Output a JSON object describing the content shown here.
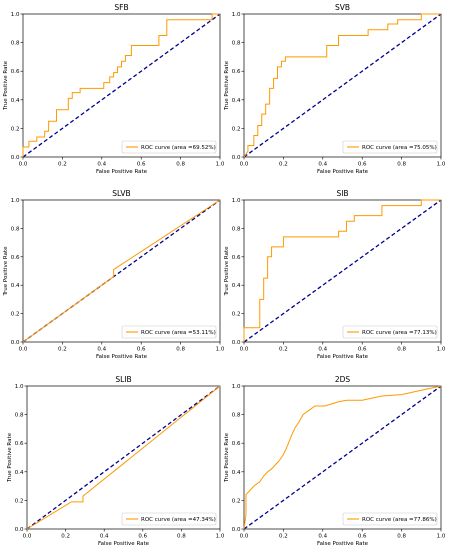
{
  "chart_data": [
    {
      "type": "line",
      "title": "SFB",
      "xlabel": "False Positive Rate",
      "ylabel": "True Positive Rate",
      "xlim": [
        0,
        1
      ],
      "ylim": [
        0,
        1
      ],
      "xticks": [
        "0.0",
        "0.2",
        "0.4",
        "0.6",
        "0.8",
        "1.0"
      ],
      "yticks": [
        "0.0",
        "0.2",
        "0.4",
        "0.6",
        "0.8",
        "1.0"
      ],
      "legend": "ROC curve (area =69.52%)",
      "legend_position": "lower-right",
      "series": [
        {
          "color": "#ff9900",
          "x": [
            0,
            0,
            0.03,
            0.03,
            0.07,
            0.07,
            0.11,
            0.11,
            0.13,
            0.13,
            0.17,
            0.17,
            0.23,
            0.23,
            0.25,
            0.25,
            0.29,
            0.29,
            0.41,
            0.41,
            0.44,
            0.44,
            0.46,
            0.46,
            0.48,
            0.48,
            0.5,
            0.5,
            0.52,
            0.52,
            0.55,
            0.55,
            0.69,
            0.69,
            0.73,
            0.73,
            0.96,
            0.96,
            1.0
          ],
          "y": [
            0,
            0.07,
            0.07,
            0.11,
            0.11,
            0.14,
            0.14,
            0.18,
            0.18,
            0.25,
            0.25,
            0.33,
            0.33,
            0.41,
            0.41,
            0.45,
            0.45,
            0.48,
            0.48,
            0.52,
            0.52,
            0.56,
            0.56,
            0.59,
            0.59,
            0.63,
            0.63,
            0.67,
            0.67,
            0.71,
            0.71,
            0.78,
            0.78,
            0.85,
            0.85,
            0.96,
            0.96,
            1.0,
            1.0
          ]
        },
        {
          "color": "#00008b",
          "dashed": true,
          "x": [
            0,
            1
          ],
          "y": [
            0,
            1
          ]
        }
      ]
    },
    {
      "type": "line",
      "title": "SVB",
      "xlabel": "False Positive Rate",
      "ylabel": "True Positive Rate",
      "xlim": [
        0,
        1
      ],
      "ylim": [
        0,
        1
      ],
      "xticks": [
        "0.0",
        "0.2",
        "0.4",
        "0.6",
        "0.8",
        "1.0"
      ],
      "yticks": [
        "0.0",
        "0.2",
        "0.4",
        "0.6",
        "0.8",
        "1.0"
      ],
      "legend": "ROC curve (area =75.05%)",
      "legend_position": "lower-right",
      "series": [
        {
          "color": "#ff9900",
          "x": [
            0,
            0.02,
            0.02,
            0.05,
            0.05,
            0.07,
            0.07,
            0.09,
            0.09,
            0.11,
            0.11,
            0.13,
            0.13,
            0.15,
            0.15,
            0.17,
            0.17,
            0.19,
            0.19,
            0.21,
            0.21,
            0.42,
            0.42,
            0.48,
            0.48,
            0.63,
            0.63,
            0.73,
            0.73,
            0.78,
            0.78,
            0.9,
            0.9,
            1.0
          ],
          "y": [
            0,
            0.04,
            0.08,
            0.08,
            0.15,
            0.15,
            0.22,
            0.22,
            0.3,
            0.3,
            0.37,
            0.37,
            0.48,
            0.48,
            0.55,
            0.55,
            0.63,
            0.63,
            0.67,
            0.67,
            0.7,
            0.7,
            0.78,
            0.78,
            0.85,
            0.85,
            0.89,
            0.89,
            0.93,
            0.93,
            0.96,
            0.96,
            1.0,
            1.0
          ]
        },
        {
          "color": "#00008b",
          "dashed": true,
          "x": [
            0,
            1
          ],
          "y": [
            0,
            1
          ]
        }
      ]
    },
    {
      "type": "line",
      "title": "SLVB",
      "xlabel": "False Positive Rate",
      "ylabel": "True Positive Rate",
      "xlim": [
        0,
        1
      ],
      "ylim": [
        0,
        1
      ],
      "xticks": [
        "0.0",
        "0.2",
        "0.4",
        "0.6",
        "0.8",
        "1.0"
      ],
      "yticks": [
        "0.0",
        "0.2",
        "0.4",
        "0.6",
        "0.8",
        "1.0"
      ],
      "legend": "ROC curve (area =53.11%)",
      "legend_position": "lower-right",
      "series": [
        {
          "color": "#ff9900",
          "x": [
            0,
            0.46,
            0.46,
            1.0
          ],
          "y": [
            0,
            0.46,
            0.51,
            1.0
          ]
        },
        {
          "color": "#00008b",
          "dashed": true,
          "x": [
            0,
            1
          ],
          "y": [
            0,
            1
          ]
        }
      ]
    },
    {
      "type": "line",
      "title": "SIB",
      "xlabel": "False Positive Rate",
      "ylabel": "True Positive Rate",
      "xlim": [
        0,
        1
      ],
      "ylim": [
        0,
        1
      ],
      "xticks": [
        "0.0",
        "0.2",
        "0.4",
        "0.6",
        "0.8",
        "1.0"
      ],
      "yticks": [
        "0.0",
        "0.2",
        "0.4",
        "0.6",
        "0.8",
        "1.0"
      ],
      "legend": "ROC curve (area =77.13%)",
      "legend_position": "lower-right",
      "series": [
        {
          "color": "#ff9900",
          "x": [
            0,
            0,
            0.08,
            0.08,
            0.1,
            0.1,
            0.12,
            0.12,
            0.14,
            0.14,
            0.2,
            0.2,
            0.48,
            0.48,
            0.52,
            0.52,
            0.56,
            0.56,
            0.7,
            0.7,
            0.9,
            0.9,
            1.0
          ],
          "y": [
            0,
            0.1,
            0.1,
            0.3,
            0.3,
            0.45,
            0.45,
            0.6,
            0.6,
            0.67,
            0.67,
            0.74,
            0.74,
            0.78,
            0.78,
            0.85,
            0.85,
            0.89,
            0.89,
            0.96,
            0.96,
            1.0,
            1.0
          ]
        },
        {
          "color": "#00008b",
          "dashed": true,
          "x": [
            0,
            1
          ],
          "y": [
            0,
            1
          ]
        }
      ]
    },
    {
      "type": "line",
      "title": "SLIB",
      "xlabel": "False Positive Rate",
      "ylabel": "True Positive Rate",
      "xlim": [
        0,
        1
      ],
      "ylim": [
        0,
        1
      ],
      "xticks": [
        "0.0",
        "0.2",
        "0.4",
        "0.6",
        "0.8",
        "1.0"
      ],
      "yticks": [
        "0.0",
        "0.2",
        "0.4",
        "0.6",
        "0.8",
        "1.0"
      ],
      "legend": "ROC curve (area =47.34%)",
      "legend_position": "lower-right",
      "series": [
        {
          "color": "#ff9900",
          "x": [
            0,
            0.23,
            0.29,
            0.29,
            1.0
          ],
          "y": [
            0,
            0.19,
            0.19,
            0.23,
            1.0
          ]
        },
        {
          "color": "#00008b",
          "dashed": true,
          "x": [
            0,
            1
          ],
          "y": [
            0,
            1
          ]
        }
      ]
    },
    {
      "type": "line",
      "title": "2DS",
      "xlabel": "False Positive Rate",
      "ylabel": "True Positive Rate",
      "xlim": [
        0,
        1
      ],
      "ylim": [
        0,
        1
      ],
      "xticks": [
        "0.0",
        "0.2",
        "0.4",
        "0.6",
        "0.8",
        "1.0"
      ],
      "yticks": [
        "0.0",
        "0.2",
        "0.4",
        "0.6",
        "0.8",
        "1.0"
      ],
      "legend": "ROC curve (area =77.86%)",
      "legend_position": "lower-right",
      "series": [
        {
          "color": "#ff9900",
          "x": [
            0,
            0.01,
            0.01,
            0.05,
            0.08,
            0.1,
            0.12,
            0.14,
            0.16,
            0.18,
            0.2,
            0.22,
            0.24,
            0.26,
            0.28,
            0.3,
            0.33,
            0.36,
            0.41,
            0.48,
            0.52,
            0.6,
            0.7,
            0.8,
            0.9,
            1.0
          ],
          "y": [
            0,
            0.1,
            0.24,
            0.3,
            0.33,
            0.37,
            0.4,
            0.42,
            0.45,
            0.48,
            0.52,
            0.58,
            0.65,
            0.71,
            0.75,
            0.8,
            0.83,
            0.86,
            0.86,
            0.89,
            0.9,
            0.9,
            0.93,
            0.94,
            0.97,
            1.0
          ]
        },
        {
          "color": "#00008b",
          "dashed": true,
          "x": [
            0,
            1
          ],
          "y": [
            0,
            1
          ]
        }
      ]
    }
  ]
}
